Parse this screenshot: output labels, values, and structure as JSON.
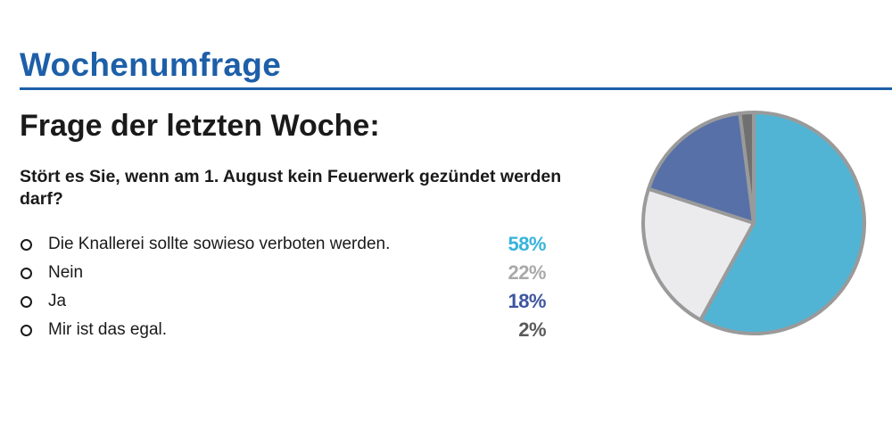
{
  "header": {
    "title": "Wochenumfrage"
  },
  "subtitle": "Frage der letzten Woche:",
  "question": "Stört es Sie, wenn am 1. August kein Feuerwerk gezündet werden darf?",
  "chart_data": {
    "type": "pie",
    "series": [
      {
        "label": "Die Knallerei sollte sowieso verboten werden.",
        "value": 58,
        "display": "58%",
        "color": "#52b4d4"
      },
      {
        "label": "Nein",
        "value": 22,
        "display": "22%",
        "color": "#ebebee"
      },
      {
        "label": "Ja",
        "value": 18,
        "display": "18%",
        "color": "#5770a8"
      },
      {
        "label": "Mir ist das egal.",
        "value": 2,
        "display": "2%",
        "color": "#707070"
      }
    ],
    "percent_colors": [
      "#36b3dc",
      "#a9a9a9",
      "#3e55a0",
      "#5a5a5a"
    ],
    "outline_color": "#9a9a9a"
  }
}
